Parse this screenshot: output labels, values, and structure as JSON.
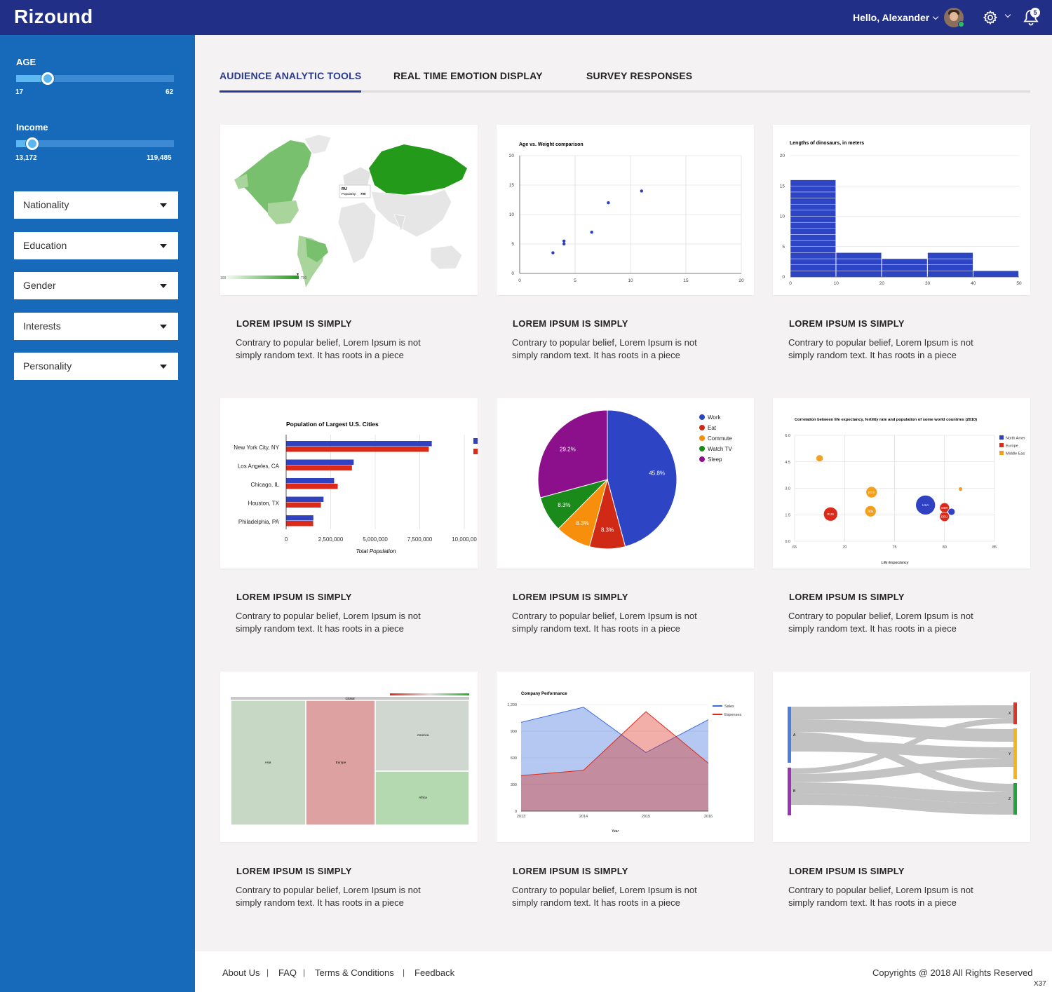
{
  "app": {
    "logo": "Rizound",
    "greeting": "Hello, Alexander",
    "notification_count": "5"
  },
  "colors": {
    "header": "#222f87",
    "sidebar": "#1769b9",
    "accent": "#2a3a91"
  },
  "icons": {
    "settings": "gear-icon",
    "notifications": "bell-icon",
    "avatar": "user-avatar"
  },
  "filters": {
    "age": {
      "label": "AGE",
      "min": "17",
      "max": "62",
      "fraction": 0.2
    },
    "income": {
      "label": "Income",
      "min": "13,172",
      "max": "119,485",
      "fraction": 0.1
    },
    "dropdowns": [
      "Nationality",
      "Education",
      "Gender",
      "Interests",
      "Personality"
    ]
  },
  "tabs": [
    {
      "label": "AUDIENCE ANALYTIC TOOLS",
      "active": true
    },
    {
      "label": "REAL TIME EMOTION DISPLAY",
      "active": false
    },
    {
      "label": "SURVEY RESPONSES",
      "active": false
    }
  ],
  "cards": [
    {
      "title": "LOREM IPSUM IS SIMPLY",
      "desc": "Contrary to popular belief, Lorem Ipsum is not simply random text. It has roots in a piece"
    },
    {
      "title": "LOREM IPSUM IS SIMPLY",
      "desc": "Contrary to popular belief, Lorem Ipsum is not simply random text. It has roots in a piece"
    },
    {
      "title": "LOREM IPSUM IS SIMPLY",
      "desc": "Contrary to popular belief, Lorem Ipsum is not simply random text. It has roots in a piece"
    },
    {
      "title": "LOREM IPSUM IS SIMPLY",
      "desc": "Contrary to popular belief, Lorem Ipsum is not simply random text. It has roots in a piece"
    },
    {
      "title": "LOREM IPSUM IS SIMPLY",
      "desc": "Contrary to popular belief, Lorem Ipsum is not simply random text. It has roots in a piece"
    },
    {
      "title": "LOREM IPSUM IS SIMPLY",
      "desc": "Contrary to popular belief, Lorem Ipsum is not simply random text. It has roots in a piece"
    },
    {
      "title": "LOREM IPSUM IS SIMPLY",
      "desc": "Contrary to popular belief, Lorem Ipsum is not simply random text. It has roots in a piece"
    },
    {
      "title": "LOREM IPSUM IS SIMPLY",
      "desc": "Contrary to popular belief, Lorem Ipsum is not simply random text. It has roots in a piece"
    },
    {
      "title": "LOREM IPSUM IS SIMPLY",
      "desc": "Contrary to popular belief, Lorem Ipsum is not simply random text. It has roots in a piece"
    }
  ],
  "footer": {
    "links": [
      "About Us",
      "FAQ",
      "Terms & Conditions",
      "Feedback"
    ],
    "copyright": "Copyrights @ 2018 All Rights Reserved",
    "tag": "X37"
  },
  "chart_data": [
    {
      "type": "geo",
      "title": "",
      "tooltip_country": "RU",
      "tooltip_label": "Popularity:",
      "tooltip_value": "700",
      "legend_min": "100",
      "legend_max": "700"
    },
    {
      "type": "scatter",
      "title": "Age vs. Weight comparison",
      "xlim": [
        0,
        20
      ],
      "ylim": [
        0,
        20
      ],
      "xticks": [
        0,
        5,
        10,
        15,
        20
      ],
      "yticks": [
        0,
        5,
        10,
        15,
        20
      ],
      "points": [
        [
          3,
          3.5
        ],
        [
          4,
          5.5
        ],
        [
          4,
          5
        ],
        [
          6.5,
          7
        ],
        [
          8,
          12
        ],
        [
          11,
          14
        ]
      ]
    },
    {
      "type": "histogram",
      "title": "Lengths of dinosaurs, in meters",
      "xlim": [
        0,
        50
      ],
      "ylim": [
        0,
        20
      ],
      "xticks": [
        0,
        10,
        20,
        30,
        40,
        50
      ],
      "yticks": [
        0,
        5,
        10,
        15,
        20
      ],
      "bins": [
        {
          "x0": 0,
          "x1": 10,
          "count": 16
        },
        {
          "x0": 10,
          "x1": 20,
          "count": 4
        },
        {
          "x0": 20,
          "x1": 30,
          "count": 3
        },
        {
          "x0": 30,
          "x1": 40,
          "count": 4
        },
        {
          "x0": 40,
          "x1": 50,
          "count": 1
        }
      ]
    },
    {
      "type": "bar",
      "title": "Population of Largest U.S. Cities",
      "xlabel": "Total Population",
      "categories": [
        "New York City, NY",
        "Los Angeles, CA",
        "Chicago, IL",
        "Houston, TX",
        "Philadelphia, PA"
      ],
      "series": [
        {
          "values": [
            8175000,
            3792000,
            2695000,
            2099000,
            1526000
          ],
          "color": "#3041c2"
        },
        {
          "values": [
            8008000,
            3694000,
            2896000,
            1953000,
            1517000
          ],
          "color": "#dc2a1a"
        }
      ],
      "xticks": [
        "0",
        "2,500,000",
        "5,000,000",
        "7,500,000",
        "10,000,00"
      ],
      "xmax": 10000000
    },
    {
      "type": "pie",
      "slices": [
        {
          "name": "Work",
          "value": 45.8,
          "label": "45.8%",
          "color": "#2d45c4"
        },
        {
          "name": "Eat",
          "value": 8.3,
          "label": "8.3%",
          "color": "#d02a17"
        },
        {
          "name": "Commute",
          "value": 8.3,
          "label": "8.3%",
          "color": "#f88f0c"
        },
        {
          "name": "Watch TV",
          "value": 8.3,
          "label": "8.3%",
          "color": "#1a8a1a"
        },
        {
          "name": "Sleep",
          "value": 29.2,
          "label": "29.2%",
          "color": "#8c0f8c"
        }
      ]
    },
    {
      "type": "bubble",
      "title": "Correlation between life expectancy, fertility rate and population of some world countries (2010)",
      "xlabel": "Life Expectancy",
      "xlim": [
        65,
        85
      ],
      "ylim": [
        0,
        6
      ],
      "xticks": [
        65,
        70,
        75,
        80,
        85
      ],
      "yticks": [
        "0.0",
        "1.5",
        "3.0",
        "4.5",
        "6.0"
      ],
      "legend": [
        {
          "name": "North Amer",
          "color": "#3041c2"
        },
        {
          "name": "Europe",
          "color": "#dc2a1a"
        },
        {
          "name": "Middle Eas",
          "color": "#f4a01f"
        }
      ],
      "points": [
        {
          "label": "",
          "x": 67.5,
          "y": 4.7,
          "r": 5,
          "color": "#f4a01f"
        },
        {
          "label": "RUS",
          "x": 68.6,
          "y": 1.54,
          "r": 10,
          "color": "#dc2a1a"
        },
        {
          "label": "EGY",
          "x": 72.7,
          "y": 2.78,
          "r": 8,
          "color": "#f4a01f"
        },
        {
          "label": "IRN",
          "x": 72.6,
          "y": 1.7,
          "r": 8,
          "color": "#f4a01f"
        },
        {
          "label": "USA",
          "x": 78.1,
          "y": 2.05,
          "r": 14,
          "color": "#3041c2"
        },
        {
          "label": "DEU",
          "x": 80.0,
          "y": 1.4,
          "r": 7,
          "color": "#dc2a1a"
        },
        {
          "label": "GBR",
          "x": 80.0,
          "y": 1.9,
          "r": 7,
          "color": "#dc2a1a"
        },
        {
          "label": "",
          "x": 80.7,
          "y": 1.67,
          "r": 5,
          "color": "#3041c2"
        },
        {
          "label": "",
          "x": 81.6,
          "y": 2.96,
          "r": 3,
          "color": "#f4a01f"
        }
      ]
    },
    {
      "type": "treemap",
      "header": "Global",
      "nodes": [
        "Asia",
        "Europe",
        "America",
        "Africa"
      ]
    },
    {
      "type": "area",
      "title": "Company Performance",
      "xlabel": "Year",
      "x": [
        "2013",
        "2014",
        "2015",
        "2016"
      ],
      "ylim": [
        0,
        1200
      ],
      "yticks": [
        "0",
        "300",
        "600",
        "900",
        "1,200"
      ],
      "series": [
        {
          "name": "Sales",
          "values": [
            1000,
            1170,
            660,
            1030
          ],
          "color": "#3b6ed9"
        },
        {
          "name": "Expenses",
          "values": [
            400,
            460,
            1120,
            540
          ],
          "color": "#dc2a1a"
        }
      ]
    },
    {
      "type": "sankey",
      "sources": [
        "A",
        "B"
      ],
      "targets": [
        "X",
        "Y",
        "Z"
      ]
    }
  ]
}
